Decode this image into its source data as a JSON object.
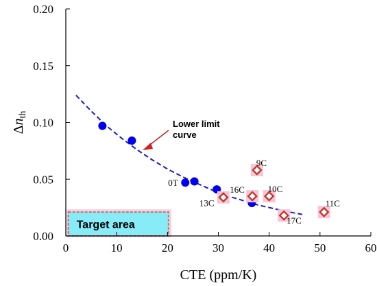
{
  "chart_data": {
    "type": "scatter",
    "xlabel": "CTE (ppm/K)",
    "ylabel_main": "Δ",
    "ylabel_italic": "n",
    "ylabel_sub": "th",
    "xlim": [
      0,
      60
    ],
    "ylim": [
      0,
      0.2
    ],
    "xticks": [
      "0",
      "10",
      "20",
      "30",
      "40",
      "50",
      "60"
    ],
    "yticks": [
      "0.00",
      "0.05",
      "0.10",
      "0.15",
      "0.20"
    ],
    "grid": false,
    "series": [
      {
        "marker": "circle",
        "color": "#0000ee",
        "points": [
          {
            "x": 7.2,
            "y": 0.097,
            "label": ""
          },
          {
            "x": 13.0,
            "y": 0.084,
            "label": ""
          },
          {
            "x": 23.5,
            "y": 0.047,
            "label": "0T"
          },
          {
            "x": 25.3,
            "y": 0.048,
            "label": ""
          },
          {
            "x": 29.7,
            "y": 0.041,
            "label": ""
          },
          {
            "x": 36.6,
            "y": 0.029,
            "label": ""
          }
        ]
      },
      {
        "marker": "diamond",
        "color": "#c0392b",
        "fill": "#ffffff",
        "halo": "#f5c6d9",
        "points": [
          {
            "x": 37.6,
            "y": 0.058,
            "label": "9C"
          },
          {
            "x": 31.0,
            "y": 0.034,
            "label": "13C"
          },
          {
            "x": 36.7,
            "y": 0.035,
            "label": "16C"
          },
          {
            "x": 40.0,
            "y": 0.035,
            "label": "10C"
          },
          {
            "x": 42.9,
            "y": 0.018,
            "label": "17C"
          },
          {
            "x": 50.8,
            "y": 0.021,
            "label": "11C"
          }
        ]
      }
    ],
    "curve": {
      "label": "Lower limit curve",
      "label_lines": [
        "Lower limit",
        "curve"
      ],
      "color": "#1a1acc",
      "style": "dashed",
      "x": [
        2,
        5,
        8,
        11,
        14,
        17,
        20,
        23,
        26,
        29,
        32,
        35,
        38,
        41,
        44,
        46.5
      ],
      "y": [
        0.124,
        0.11,
        0.097,
        0.086,
        0.076,
        0.067,
        0.059,
        0.052,
        0.046,
        0.04,
        0.035,
        0.031,
        0.027,
        0.024,
        0.021,
        0.019
      ]
    },
    "target_area": {
      "label": "Target area",
      "x": [
        0.5,
        20.2
      ],
      "y": [
        0.0,
        0.021
      ],
      "fill": "#88ecf8",
      "border": "#b47a5a",
      "halo": "#f8cde6"
    }
  }
}
